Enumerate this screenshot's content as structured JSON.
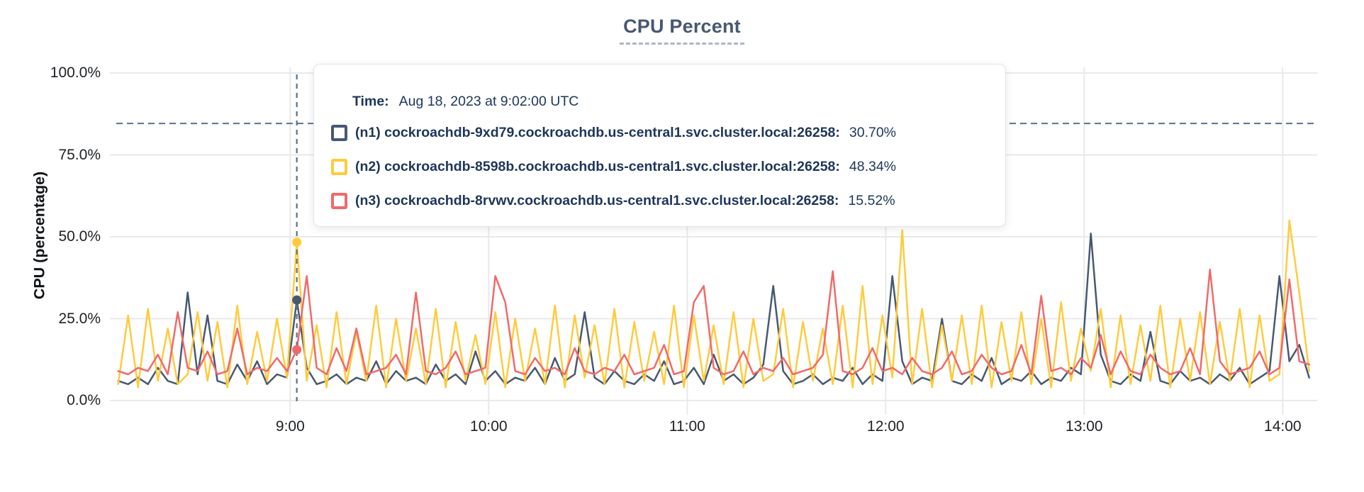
{
  "title": "CPU Percent",
  "y_axis": {
    "label": "CPU (percentage)",
    "ticks": [
      {
        "value": 100,
        "label": "100.0%"
      },
      {
        "value": 75,
        "label": "75.0%"
      },
      {
        "value": 50,
        "label": "50.0%"
      },
      {
        "value": 25,
        "label": "25.0%"
      },
      {
        "value": 0,
        "label": "0.0%"
      }
    ]
  },
  "x_axis": {
    "ticks": [
      {
        "minutes": 540,
        "label": "9:00"
      },
      {
        "minutes": 600,
        "label": "10:00"
      },
      {
        "minutes": 660,
        "label": "11:00"
      },
      {
        "minutes": 720,
        "label": "12:00"
      },
      {
        "minutes": 780,
        "label": "13:00"
      },
      {
        "minutes": 840,
        "label": "14:00"
      }
    ]
  },
  "tooltip": {
    "time_label": "Time:",
    "time_value": "Aug 18, 2023 at 9:02:00 UTC",
    "rows": [
      {
        "name": "(n1) cockroachdb-9xd79.cockroachdb.us-central1.svc.cluster.local:26258:",
        "value": "30.70%"
      },
      {
        "name": "(n2) cockroachdb-8598b.cockroachdb.us-central1.svc.cluster.local:26258:",
        "value": "48.34%"
      },
      {
        "name": "(n3) cockroachdb-8rvwv.cockroachdb.us-central1.svc.cluster.local:26258:",
        "value": "15.52%"
      }
    ]
  },
  "chart_data": {
    "type": "line",
    "title": "CPU Percent",
    "ylabel": "CPU (percentage)",
    "ylim": [
      0,
      100
    ],
    "grid": true,
    "x_unit": "minutes since midnight UTC, Aug 18 2023",
    "x_start_minutes": 488,
    "x_step_minutes": 3,
    "threshold_line": {
      "value": 84.6,
      "style": "dashed",
      "color": "#5c7287"
    },
    "hover": {
      "minutes": 542,
      "time": "Aug 18, 2023 at 9:02:00 UTC",
      "values": [
        30.7,
        48.34,
        15.52
      ]
    },
    "series": [
      {
        "name": "(n1) cockroachdb-9xd79.cockroachdb.us-central1.svc.cluster.local:26258",
        "color": "#475872",
        "values": [
          6,
          5,
          7,
          5,
          10,
          6,
          5,
          33,
          8,
          26,
          6,
          5,
          11,
          6,
          12,
          5,
          8,
          7,
          30.7,
          10,
          5,
          6,
          8,
          5,
          7,
          6,
          12,
          5,
          9,
          6,
          7,
          5,
          11,
          6,
          8,
          5,
          15,
          6,
          9,
          5,
          7,
          6,
          10,
          5,
          13,
          6,
          8,
          27,
          7,
          5,
          9,
          6,
          5,
          8,
          6,
          12,
          5,
          6,
          10,
          5,
          14,
          6,
          8,
          5,
          7,
          11,
          35,
          9,
          5,
          6,
          8,
          5,
          7,
          6,
          10,
          5,
          8,
          6,
          38,
          12,
          5,
          7,
          6,
          25,
          6,
          5,
          8,
          6,
          13,
          5,
          7,
          6,
          9,
          5,
          7,
          6,
          10,
          8,
          51,
          14,
          6,
          5,
          8,
          6,
          21,
          6,
          5,
          9,
          6,
          7,
          5,
          8,
          6,
          10,
          5,
          7,
          9,
          38,
          12,
          17,
          7
        ]
      },
      {
        "name": "(n2) cockroachdb-8598b.cockroachdb.us-central1.svc.cluster.local:26258",
        "color": "#ffcb3d",
        "values": [
          5,
          26,
          4,
          28,
          6,
          22,
          5,
          8,
          27,
          6,
          24,
          4,
          29,
          5,
          21,
          6,
          25,
          7,
          48.34,
          6,
          23,
          4,
          27,
          5,
          21,
          6,
          29,
          4,
          25,
          6,
          22,
          5,
          28,
          4,
          24,
          6,
          20,
          5,
          27,
          4,
          25,
          6,
          22,
          5,
          29,
          4,
          26,
          7,
          23,
          5,
          28,
          4,
          24,
          6,
          21,
          5,
          29,
          4,
          26,
          6,
          23,
          5,
          27,
          4,
          25,
          6,
          8,
          28,
          4,
          24,
          6,
          22,
          5,
          29,
          4,
          35,
          5,
          26,
          7,
          52,
          5,
          28,
          4,
          23,
          6,
          26,
          5,
          29,
          4,
          24,
          6,
          27,
          5,
          25,
          4,
          30,
          6,
          22,
          9,
          28,
          4,
          26,
          5,
          23,
          6,
          29,
          4,
          25,
          6,
          27,
          5,
          24,
          6,
          28,
          4,
          26,
          6,
          8,
          55,
          33,
          9
        ]
      },
      {
        "name": "(n3) cockroachdb-8rvwv.cockroachdb.us-central1.svc.cluster.local:26258",
        "color": "#f16969",
        "values": [
          9,
          8,
          10,
          9,
          14,
          8,
          27,
          10,
          9,
          15,
          8,
          9,
          22,
          8,
          10,
          9,
          13,
          9,
          15.52,
          38,
          10,
          8,
          16,
          9,
          22,
          8,
          9,
          10,
          14,
          8,
          33,
          9,
          8,
          10,
          15,
          8,
          9,
          10,
          38,
          30,
          9,
          8,
          13,
          9,
          10,
          8,
          16,
          9,
          8,
          10,
          9,
          14,
          8,
          9,
          10,
          17,
          8,
          9,
          30,
          35,
          10,
          8,
          9,
          15,
          8,
          10,
          9,
          13,
          8,
          9,
          10,
          14,
          39.5,
          9,
          8,
          10,
          16,
          9,
          10,
          8,
          13,
          9,
          8,
          10,
          15,
          8,
          9,
          14,
          10,
          8,
          9,
          17,
          8,
          32,
          9,
          10,
          8,
          13,
          10,
          20,
          8,
          15,
          9,
          8,
          14,
          10,
          8,
          9,
          16,
          8,
          40,
          12,
          8,
          9,
          10,
          15,
          8,
          10,
          37,
          12,
          11
        ]
      }
    ]
  }
}
